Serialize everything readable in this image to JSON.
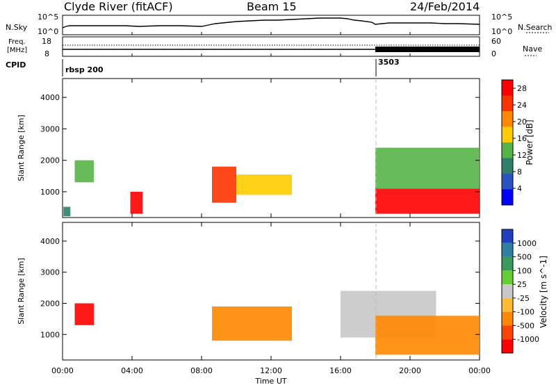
{
  "header": {
    "station": "Clyde River (fitACF)",
    "beam": "Beam 15",
    "date": "24/Feb/2014"
  },
  "strip": {
    "nsky_label": "N.Sky",
    "nsearch_label": "N.Search",
    "freq_label_1": "Freq.",
    "freq_label_2": "[MHz]",
    "nave_label": "Nave",
    "cpid_label": "CPID",
    "nsky_ticks": [
      "10^5",
      "10^0"
    ],
    "nsearch_ticks": [
      "10^5",
      "10^0"
    ],
    "freq_ticks": [
      "18",
      "8"
    ],
    "nave_ticks": [
      "60",
      "0"
    ],
    "cpid_segments": [
      {
        "label": "rbsp 200",
        "start_hour": 0
      },
      {
        "label": "3503",
        "start_hour": 18
      }
    ]
  },
  "chart_data": [
    {
      "type": "heatmap",
      "panel": "power",
      "ylabel": "Slant Range [km]",
      "xlim_hours": [
        0,
        24
      ],
      "ylim_km": [
        180,
        4600
      ],
      "y_ticks": [
        "1000",
        "2000",
        "3000",
        "4000"
      ],
      "x_ticks": [
        "00:00",
        "04:00",
        "08:00",
        "12:00",
        "16:00",
        "20:00",
        "00:00"
      ],
      "colorbar": {
        "label": "Power [dB]",
        "ticks": [
          "4",
          "8",
          "12",
          "16",
          "20",
          "24",
          "28"
        ],
        "range": [
          0,
          30
        ],
        "colors": [
          "#0000ff",
          "#2a52c0",
          "#2f7f6a",
          "#56b447",
          "#ffcc00",
          "#ff8800",
          "#ff3300",
          "#ff0000"
        ]
      },
      "regions": [
        {
          "t0": 0.05,
          "t1": 0.45,
          "r0": 220,
          "r1": 520,
          "value": 10
        },
        {
          "t0": 0.7,
          "t1": 1.8,
          "r0": 1300,
          "r1": 2000,
          "value": 14
        },
        {
          "t0": 3.9,
          "t1": 4.6,
          "r0": 300,
          "r1": 1000,
          "value": 28
        },
        {
          "t0": 8.6,
          "t1": 10.0,
          "r0": 650,
          "r1": 1800,
          "value": 24
        },
        {
          "t0": 10.0,
          "t1": 13.2,
          "r0": 900,
          "r1": 1550,
          "value": 16
        },
        {
          "t0": 18.0,
          "t1": 24.0,
          "r0": 300,
          "r1": 1100,
          "value": 28
        },
        {
          "t0": 18.0,
          "t1": 24.0,
          "r0": 1100,
          "r1": 2400,
          "value": 14
        }
      ]
    },
    {
      "type": "heatmap",
      "panel": "velocity",
      "ylabel": "Slant Range [km]",
      "xlabel": "Time UT",
      "xlim_hours": [
        0,
        24
      ],
      "ylim_km": [
        180,
        4600
      ],
      "y_ticks": [
        "1000",
        "2000",
        "3000",
        "4000"
      ],
      "x_ticks": [
        "00:00",
        "04:00",
        "08:00",
        "12:00",
        "16:00",
        "20:00",
        "00:00"
      ],
      "colorbar": {
        "label": "Velocity [m s^-1]",
        "ticks": [
          "1000",
          "500",
          "100",
          "25",
          "-25",
          "-100",
          "-500",
          "-1000"
        ],
        "colors": [
          "#1f3fbf",
          "#2f7fa0",
          "#3a9a5a",
          "#66cc33",
          "#c8c8c8",
          "#ffbb33",
          "#ff8800",
          "#ff4400",
          "#ff0000"
        ]
      },
      "regions": [
        {
          "t0": 0.7,
          "t1": 1.8,
          "r0": 1300,
          "r1": 2000,
          "value": -500
        },
        {
          "t0": 8.6,
          "t1": 13.2,
          "r0": 800,
          "r1": 1900,
          "value": -200
        },
        {
          "t0": 16.0,
          "t1": 21.5,
          "r0": 900,
          "r1": 2400,
          "value": 0
        },
        {
          "t0": 18.0,
          "t1": 24.0,
          "r0": 350,
          "r1": 1600,
          "value": -200
        }
      ]
    }
  ]
}
